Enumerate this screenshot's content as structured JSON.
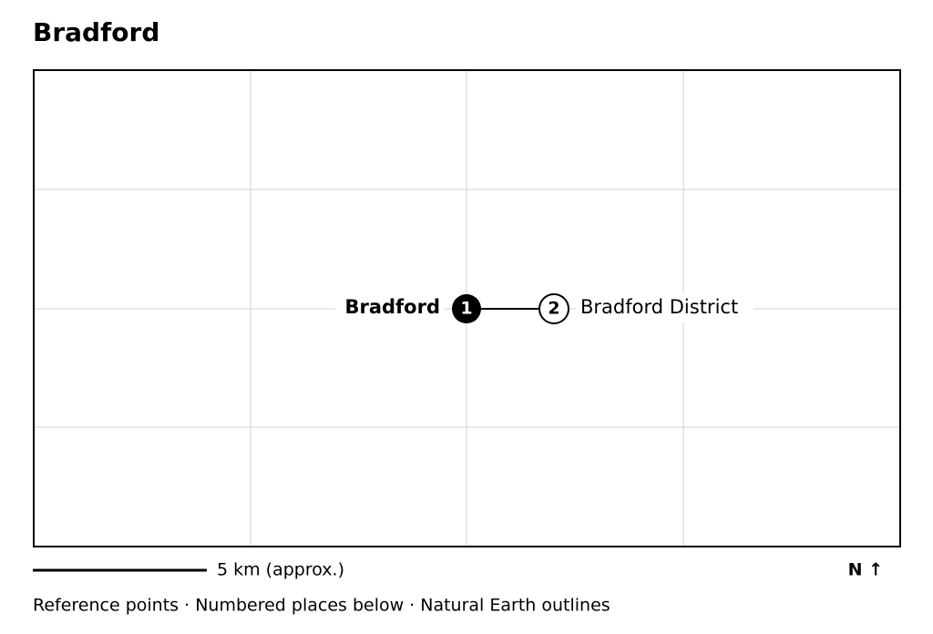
{
  "title": "Bradford",
  "places": [
    {
      "number": "1",
      "label": "Bradford"
    },
    {
      "number": "2",
      "label": "Bradford District"
    }
  ],
  "scale_label": "5 km (approx.)",
  "north_label": "N ↑",
  "footer": "Reference points · Numbered places below · Natural Earth outlines"
}
